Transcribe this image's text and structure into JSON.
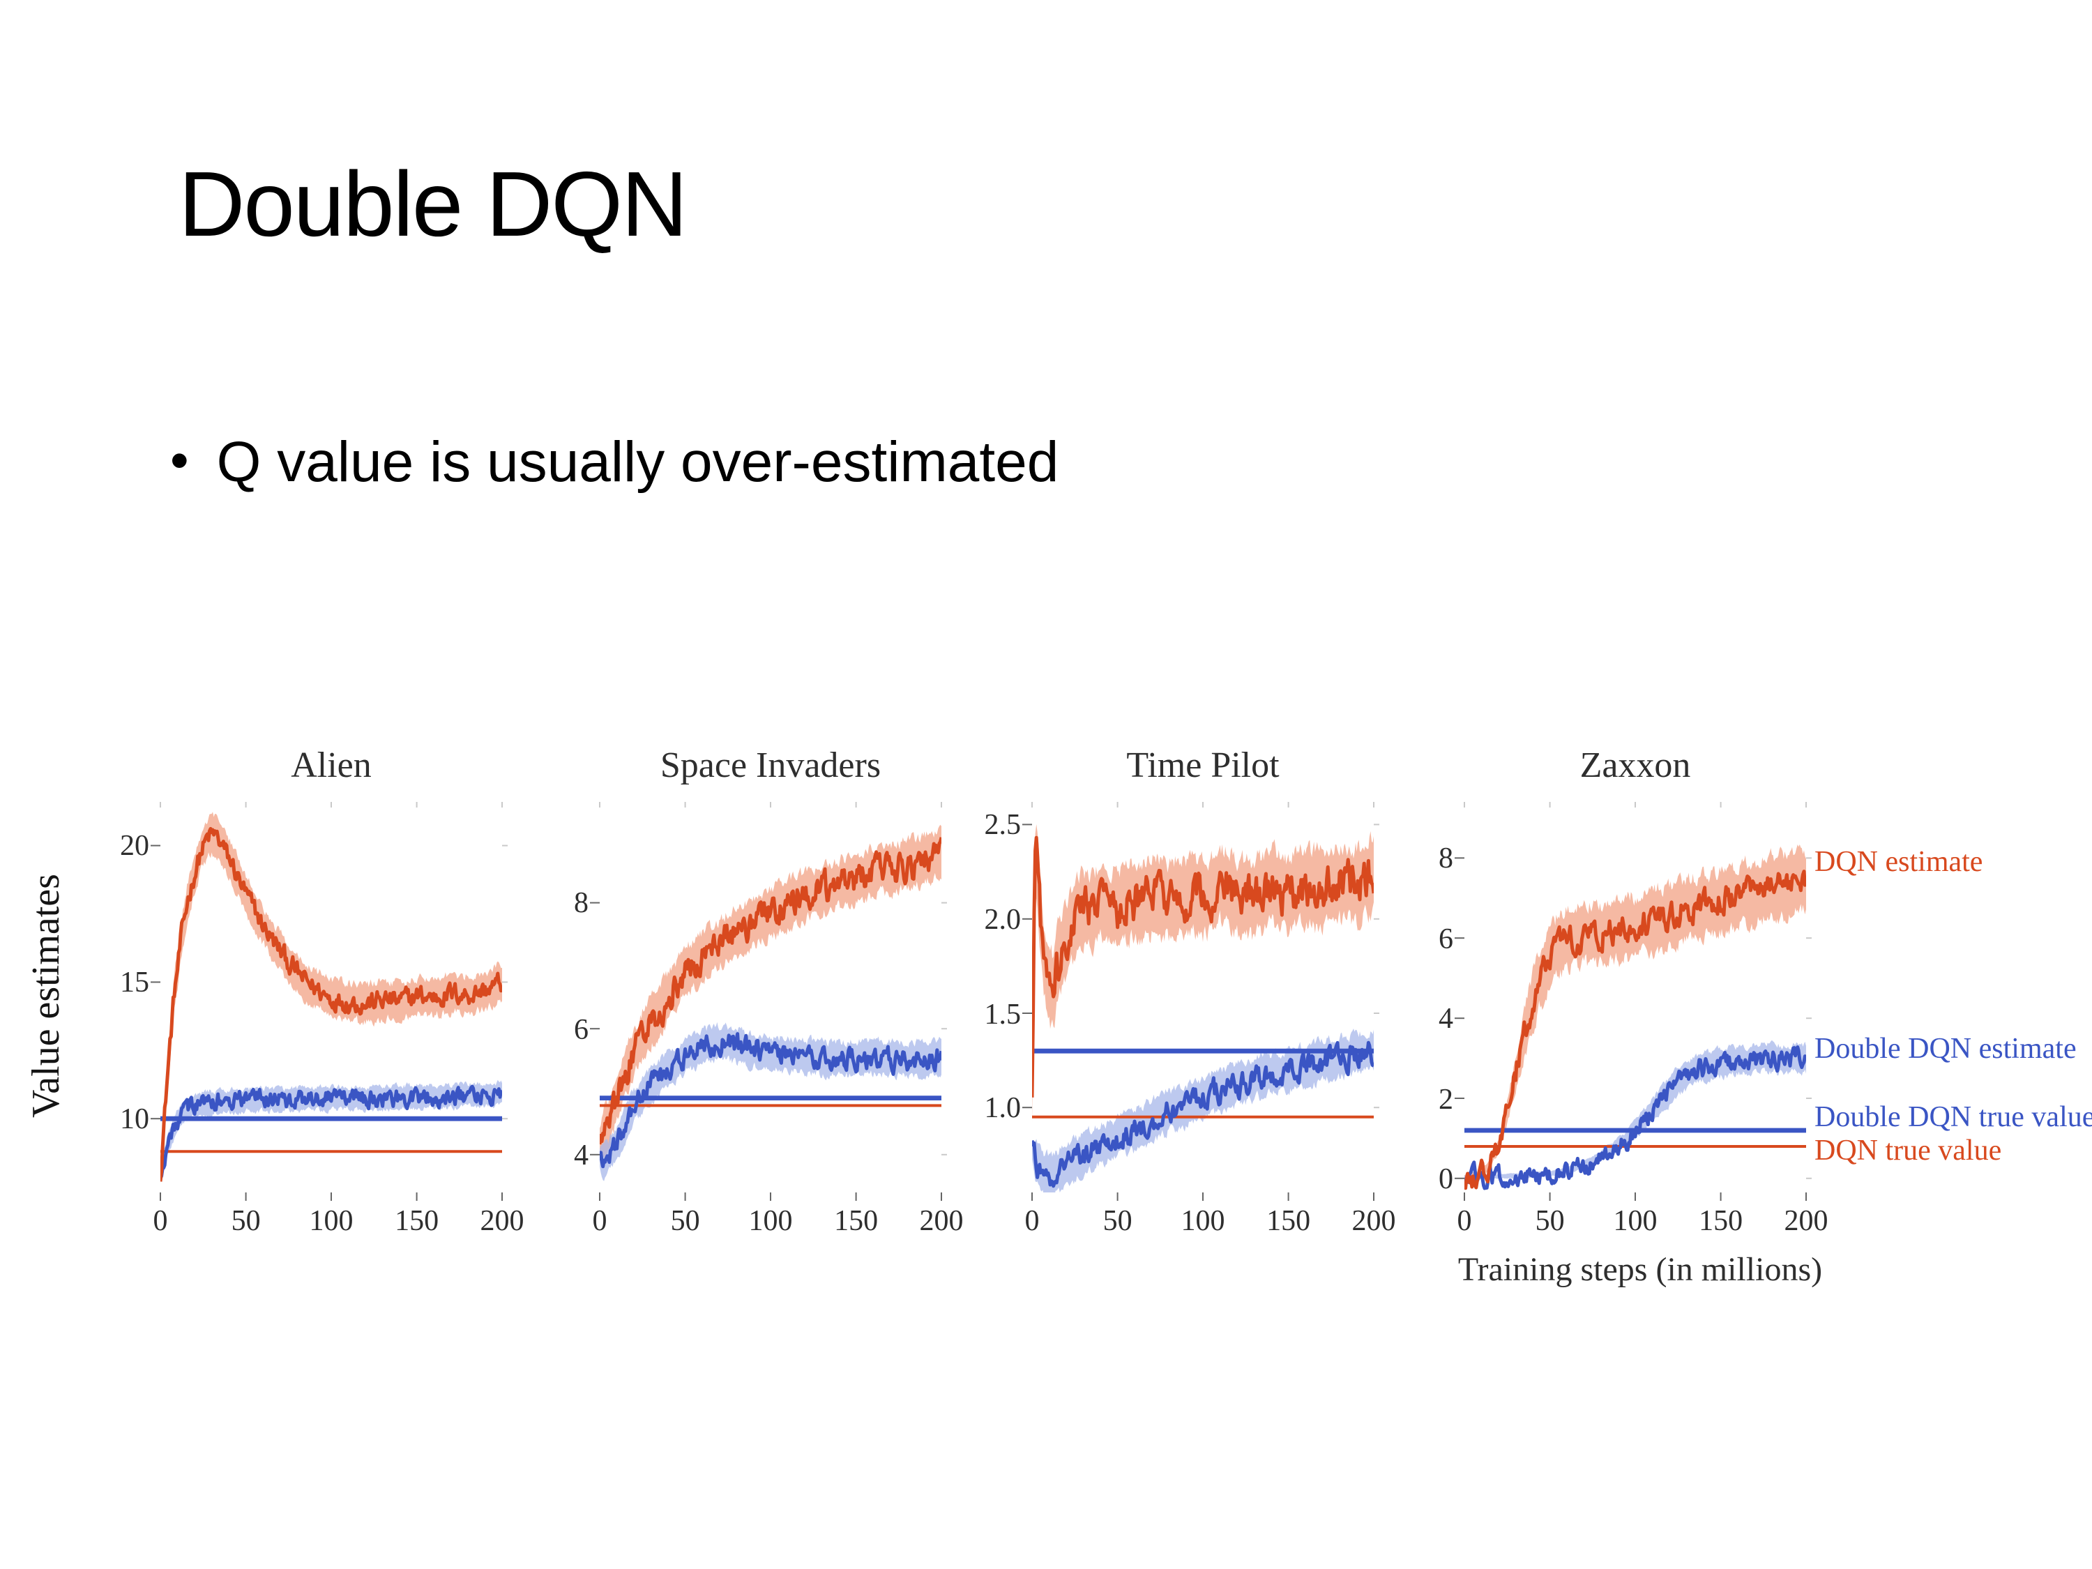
{
  "slide": {
    "title": "Double DQN",
    "bullet_marker": "•",
    "bullet": "Q value is usually over-estimated"
  },
  "figure": {
    "y_axis_label": "Value estimates",
    "x_axis_label": "Training steps (in millions)",
    "legend": {
      "dqn_estimate": "DQN estimate",
      "ddqn_estimate": "Double DQN estimate",
      "ddqn_true": "Double DQN true value",
      "dqn_true": "DQN true value"
    },
    "colors": {
      "dqn": "#d8491e",
      "dqn_band": "#f2a284",
      "ddqn": "#3a55c4",
      "ddqn_band": "#a7b7ea"
    }
  },
  "chart_data": {
    "type": "line",
    "x_range": [
      0,
      200
    ],
    "xtick_values": [
      0,
      50,
      100,
      150,
      200
    ],
    "xtick_labels": [
      "0",
      "50",
      "100",
      "150",
      "200"
    ],
    "xlabel": "Training steps (in millions)",
    "ylabel": "Value estimates",
    "charts": [
      {
        "title": "Alien",
        "ylim": [
          7.3,
          21.6
        ],
        "ytick_values": [
          10,
          15,
          20
        ],
        "ytick_labels": [
          "10",
          "15",
          "20"
        ],
        "series": [
          {
            "name": "DQN estimate",
            "color_key": "dqn",
            "noise": 0.35,
            "band": 0.9,
            "keypoints": [
              [
                0,
                8.0
              ],
              [
                4,
                11.5
              ],
              [
                8,
                14.5
              ],
              [
                12,
                16.5
              ],
              [
                16,
                18.0
              ],
              [
                20,
                19.0
              ],
              [
                24,
                19.8
              ],
              [
                28,
                20.3
              ],
              [
                32,
                20.4
              ],
              [
                36,
                20.0
              ],
              [
                42,
                19.3
              ],
              [
                50,
                18.2
              ],
              [
                58,
                17.3
              ],
              [
                66,
                16.5
              ],
              [
                74,
                15.8
              ],
              [
                82,
                15.2
              ],
              [
                90,
                14.8
              ],
              [
                100,
                14.4
              ],
              [
                110,
                14.3
              ],
              [
                120,
                14.2
              ],
              [
                130,
                14.35
              ],
              [
                140,
                14.3
              ],
              [
                150,
                14.5
              ],
              [
                160,
                14.45
              ],
              [
                170,
                14.6
              ],
              [
                180,
                14.55
              ],
              [
                190,
                14.7
              ],
              [
                200,
                15.0
              ]
            ]
          },
          {
            "name": "Double DQN estimate",
            "color_key": "ddqn",
            "noise": 0.3,
            "band": 0.55,
            "keypoints": [
              [
                0,
                8.0
              ],
              [
                4,
                9.0
              ],
              [
                8,
                9.7
              ],
              [
                12,
                10.1
              ],
              [
                16,
                10.35
              ],
              [
                20,
                10.5
              ],
              [
                30,
                10.6
              ],
              [
                40,
                10.65
              ],
              [
                60,
                10.7
              ],
              [
                80,
                10.7
              ],
              [
                100,
                10.75
              ],
              [
                120,
                10.75
              ],
              [
                140,
                10.8
              ],
              [
                160,
                10.8
              ],
              [
                180,
                10.85
              ],
              [
                200,
                10.9
              ]
            ]
          }
        ],
        "true_values": [
          {
            "name": "Double DQN true value",
            "value": 10.0,
            "color_key": "ddqn",
            "width": 3.4
          },
          {
            "name": "DQN true value",
            "value": 8.8,
            "color_key": "dqn",
            "width": 2
          }
        ]
      },
      {
        "title": "Space Invaders",
        "ylim": [
          3.4,
          9.6
        ],
        "ytick_values": [
          4,
          6,
          8
        ],
        "ytick_labels": [
          "4",
          "6",
          "8"
        ],
        "series": [
          {
            "name": "DQN estimate",
            "color_key": "dqn",
            "noise": 0.22,
            "band": 0.5,
            "keypoints": [
              [
                0,
                4.2
              ],
              [
                5,
                4.5
              ],
              [
                10,
                4.9
              ],
              [
                15,
                5.3
              ],
              [
                20,
                5.6
              ],
              [
                25,
                5.9
              ],
              [
                30,
                6.1
              ],
              [
                40,
                6.5
              ],
              [
                50,
                6.9
              ],
              [
                60,
                7.15
              ],
              [
                70,
                7.35
              ],
              [
                80,
                7.55
              ],
              [
                90,
                7.7
              ],
              [
                100,
                7.85
              ],
              [
                110,
                7.95
              ],
              [
                120,
                8.1
              ],
              [
                130,
                8.2
              ],
              [
                140,
                8.3
              ],
              [
                150,
                8.4
              ],
              [
                160,
                8.5
              ],
              [
                170,
                8.55
              ],
              [
                180,
                8.6
              ],
              [
                190,
                8.7
              ],
              [
                200,
                8.8
              ]
            ]
          },
          {
            "name": "Double DQN estimate",
            "color_key": "ddqn",
            "noise": 0.16,
            "band": 0.35,
            "keypoints": [
              [
                0,
                3.9
              ],
              [
                5,
                3.95
              ],
              [
                10,
                4.2
              ],
              [
                15,
                4.5
              ],
              [
                20,
                4.75
              ],
              [
                25,
                4.95
              ],
              [
                30,
                5.1
              ],
              [
                40,
                5.35
              ],
              [
                50,
                5.55
              ],
              [
                60,
                5.7
              ],
              [
                70,
                5.78
              ],
              [
                80,
                5.72
              ],
              [
                90,
                5.66
              ],
              [
                100,
                5.6
              ],
              [
                120,
                5.55
              ],
              [
                140,
                5.52
              ],
              [
                160,
                5.55
              ],
              [
                180,
                5.5
              ],
              [
                200,
                5.55
              ]
            ]
          }
        ],
        "true_values": [
          {
            "name": "Double DQN true value",
            "value": 4.9,
            "color_key": "ddqn",
            "width": 3.4
          },
          {
            "name": "DQN true value",
            "value": 4.78,
            "color_key": "dqn",
            "width": 2
          }
        ]
      },
      {
        "title": "Time Pilot",
        "ylim": [
          0.55,
          2.62
        ],
        "ytick_values": [
          1.0,
          1.5,
          2.0,
          2.5
        ],
        "ytick_labels": [
          "1.0",
          "1.5",
          "2.0",
          "2.5"
        ],
        "series": [
          {
            "name": "DQN estimate",
            "color_key": "dqn",
            "noise": 0.1,
            "band": 0.26,
            "keypoints": [
              [
                0,
                1.0
              ],
              [
                1,
                1.8
              ],
              [
                2,
                2.35
              ],
              [
                3,
                2.3
              ],
              [
                5,
                2.0
              ],
              [
                7,
                1.8
              ],
              [
                9,
                1.68
              ],
              [
                12,
                1.62
              ],
              [
                15,
                1.75
              ],
              [
                18,
                1.85
              ],
              [
                22,
                1.95
              ],
              [
                26,
                2.0
              ],
              [
                30,
                2.05
              ],
              [
                36,
                2.05
              ],
              [
                42,
                2.1
              ],
              [
                50,
                2.05
              ],
              [
                60,
                2.1
              ],
              [
                70,
                2.12
              ],
              [
                80,
                2.1
              ],
              [
                90,
                2.12
              ],
              [
                100,
                2.1
              ],
              [
                110,
                2.18
              ],
              [
                120,
                2.12
              ],
              [
                130,
                2.1
              ],
              [
                140,
                2.18
              ],
              [
                150,
                2.12
              ],
              [
                160,
                2.18
              ],
              [
                170,
                2.15
              ],
              [
                180,
                2.2
              ],
              [
                190,
                2.18
              ],
              [
                200,
                2.22
              ]
            ]
          },
          {
            "name": "Double DQN estimate",
            "color_key": "ddqn",
            "noise": 0.06,
            "band": 0.14,
            "keypoints": [
              [
                0,
                0.78
              ],
              [
                3,
                0.7
              ],
              [
                6,
                0.66
              ],
              [
                10,
                0.64
              ],
              [
                15,
                0.66
              ],
              [
                20,
                0.7
              ],
              [
                25,
                0.72
              ],
              [
                30,
                0.75
              ],
              [
                40,
                0.8
              ],
              [
                50,
                0.84
              ],
              [
                60,
                0.88
              ],
              [
                70,
                0.93
              ],
              [
                80,
                0.98
              ],
              [
                90,
                1.01
              ],
              [
                100,
                1.05
              ],
              [
                110,
                1.09
              ],
              [
                120,
                1.12
              ],
              [
                130,
                1.15
              ],
              [
                140,
                1.18
              ],
              [
                150,
                1.2
              ],
              [
                160,
                1.22
              ],
              [
                170,
                1.25
              ],
              [
                180,
                1.27
              ],
              [
                190,
                1.28
              ],
              [
                200,
                1.3
              ]
            ]
          }
        ],
        "true_values": [
          {
            "name": "Double DQN true value",
            "value": 1.3,
            "color_key": "ddqn",
            "width": 3.4
          },
          {
            "name": "DQN true value",
            "value": 0.95,
            "color_key": "dqn",
            "width": 2
          }
        ]
      },
      {
        "title": "Zaxxon",
        "ylim": [
          -0.35,
          9.4
        ],
        "ytick_values": [
          0,
          2,
          4,
          6,
          8
        ],
        "ytick_labels": [
          "0",
          "2",
          "4",
          "6",
          "8"
        ],
        "series": [
          {
            "name": "DQN estimate",
            "color_key": "dqn",
            "noise": 0.3,
            "band": 1.0,
            "band_ref": 5,
            "keypoints": [
              [
                0,
                0.05
              ],
              [
                8,
                0.1
              ],
              [
                14,
                0.3
              ],
              [
                20,
                0.8
              ],
              [
                26,
                1.8
              ],
              [
                32,
                3.0
              ],
              [
                38,
                4.1
              ],
              [
                44,
                5.0
              ],
              [
                50,
                5.5
              ],
              [
                56,
                5.85
              ],
              [
                62,
                6.0
              ],
              [
                70,
                6.1
              ],
              [
                80,
                6.1
              ],
              [
                90,
                6.2
              ],
              [
                100,
                6.3
              ],
              [
                110,
                6.45
              ],
              [
                120,
                6.55
              ],
              [
                130,
                6.7
              ],
              [
                140,
                6.8
              ],
              [
                150,
                6.95
              ],
              [
                160,
                7.05
              ],
              [
                170,
                7.15
              ],
              [
                180,
                7.25
              ],
              [
                190,
                7.35
              ],
              [
                200,
                7.45
              ]
            ]
          },
          {
            "name": "Double DQN estimate",
            "color_key": "ddqn",
            "noise": 0.22,
            "band": 0.45,
            "band_ref": 2.5,
            "keypoints": [
              [
                0,
                0.03
              ],
              [
                20,
                0.05
              ],
              [
                40,
                0.08
              ],
              [
                55,
                0.15
              ],
              [
                65,
                0.25
              ],
              [
                75,
                0.45
              ],
              [
                85,
                0.7
              ],
              [
                95,
                1.0
              ],
              [
                105,
                1.45
              ],
              [
                115,
                1.95
              ],
              [
                125,
                2.4
              ],
              [
                135,
                2.7
              ],
              [
                145,
                2.85
              ],
              [
                155,
                2.92
              ],
              [
                165,
                2.96
              ],
              [
                175,
                3.0
              ],
              [
                185,
                2.97
              ],
              [
                195,
                3.0
              ],
              [
                200,
                3.0
              ]
            ]
          }
        ],
        "true_values": [
          {
            "name": "Double DQN true value",
            "value": 1.2,
            "color_key": "ddqn",
            "width": 3.4
          },
          {
            "name": "DQN true value",
            "value": 0.8,
            "color_key": "dqn",
            "width": 2
          }
        ]
      }
    ]
  }
}
